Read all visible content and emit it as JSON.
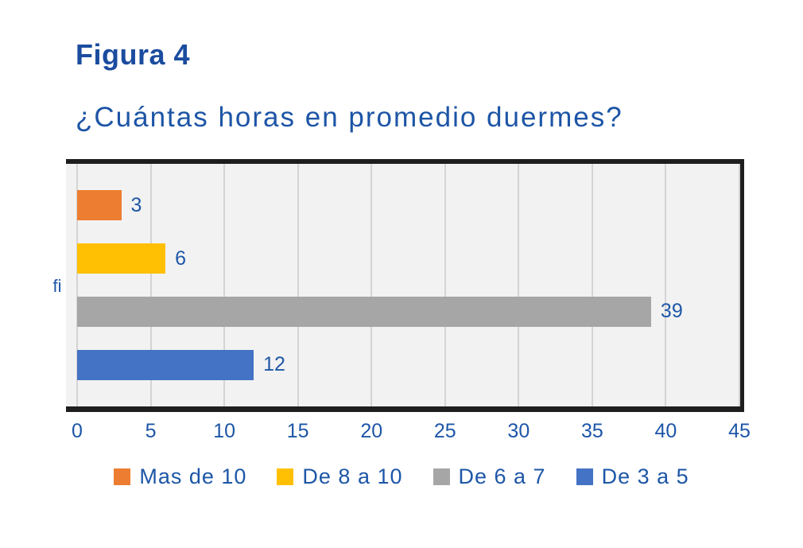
{
  "header": {
    "figure_label": "Figura 4",
    "question": "¿Cuántas horas en promedio duermes?"
  },
  "chart_data": {
    "type": "bar",
    "orientation": "horizontal",
    "title": "¿Cuántas horas en promedio duermes?",
    "xlabel": "",
    "ylabel": "fi",
    "xlim": [
      0,
      45
    ],
    "x_ticks": [
      0,
      5,
      10,
      15,
      20,
      25,
      30,
      35,
      40,
      45
    ],
    "grid": true,
    "legend_position": "bottom",
    "categories": [
      "Mas de 10",
      "De 8 a 10",
      "De 6 a 7",
      "De 3 a 5"
    ],
    "values": [
      3,
      6,
      39,
      12
    ],
    "bar_colors": [
      "#ED7D31",
      "#FFC003",
      "#A6A6A6",
      "#4472C4"
    ],
    "data_labels": [
      "3",
      "6",
      "39",
      "12"
    ]
  },
  "legend": {
    "items": [
      {
        "label": "Mas de 10",
        "color": "#ED7D31"
      },
      {
        "label": "De 8 a 10",
        "color": "#FFC003"
      },
      {
        "label": "De 6 a 7",
        "color": "#A6A6A6"
      },
      {
        "label": "De 3 a 5",
        "color": "#4472C4"
      }
    ]
  },
  "colors": {
    "title_text": "#1B4C9F",
    "chart_text": "#1D56A7",
    "plot_background": "#F2F2F2",
    "gridline": "#D4D4D4",
    "frame_border": "#1E1E1E",
    "page_background": "#FFFFFF"
  }
}
